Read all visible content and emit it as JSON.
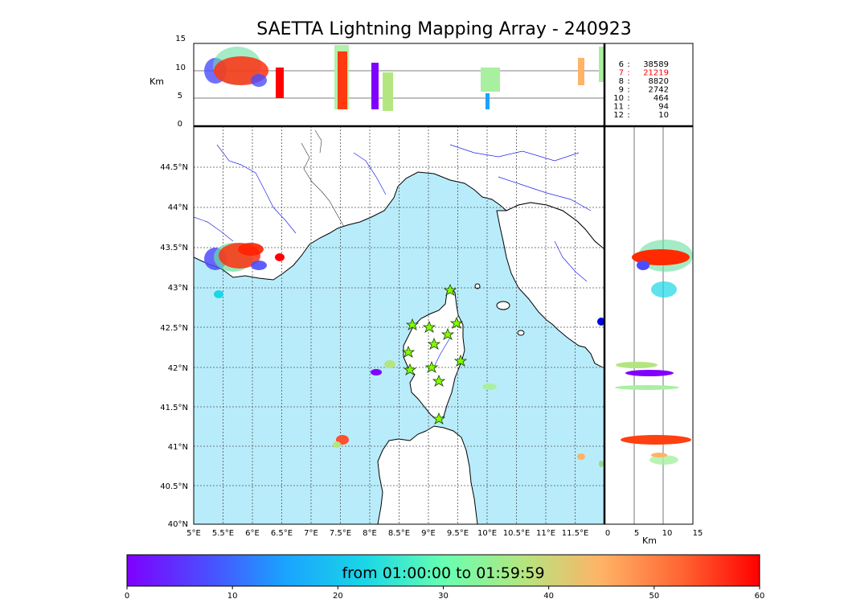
{
  "title": "SAETTA Lightning Mapping Array - 240923",
  "top_panel": {
    "ylabel": "Km",
    "yticks": [
      "15",
      "10",
      "5",
      "0"
    ]
  },
  "side_panel": {
    "xlabel": "Km",
    "xticks": [
      "0",
      "5",
      "10",
      "15"
    ]
  },
  "map": {
    "lat_labels": [
      "44.5°N",
      "44°N",
      "43.5°N",
      "43°N",
      "42.5°N",
      "42°N",
      "41.5°N",
      "41°N",
      "40.5°N",
      "40°N"
    ],
    "lon_labels": [
      "5°E",
      "5.5°E",
      "6°E",
      "6.5°E",
      "7°E",
      "7.5°E",
      "8°E",
      "8.5°E",
      "9°E",
      "9.5°E",
      "10°E",
      "10.5°E",
      "11°E",
      "11.5°E"
    ]
  },
  "station_counts": [
    {
      "station": "6",
      "sep": ":",
      "count": "38589",
      "color": "#000000"
    },
    {
      "station": "7",
      "sep": ":",
      "count": "21219",
      "color": "#ff0000"
    },
    {
      "station": "8",
      "sep": ":",
      "count": "8820",
      "color": "#000000"
    },
    {
      "station": "9",
      "sep": ":",
      "count": "2742",
      "color": "#000000"
    },
    {
      "station": "10",
      "sep": ":",
      "count": "464",
      "color": "#000000"
    },
    {
      "station": "11",
      "sep": ":",
      "count": "94",
      "color": "#000000"
    },
    {
      "station": "12",
      "sep": ":",
      "count": "10",
      "color": "#000000"
    }
  ],
  "colorbar": {
    "caption": "from 01:00:00 to 01:59:59",
    "ticks": [
      "0",
      "10",
      "20",
      "30",
      "40",
      "50",
      "60"
    ],
    "range": [
      0,
      60
    ],
    "colors": [
      "#7f00ff",
      "#4c4cff",
      "#1aa3ff",
      "#1ad6e6",
      "#66ffb2",
      "#b3e680",
      "#ffb366",
      "#ff6633",
      "#ff0000"
    ]
  },
  "colors": {
    "sea": "#b8ecfb",
    "land": "#ffffff",
    "rivers": "#2222ee",
    "stations": "#80ff00"
  }
}
